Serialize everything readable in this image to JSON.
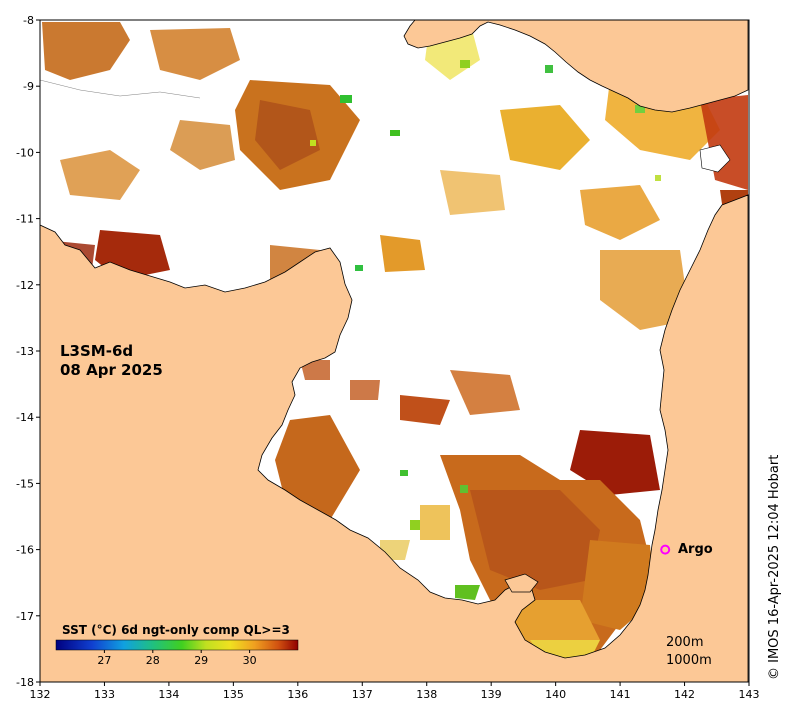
{
  "map": {
    "product": "L3SM-6d",
    "date": "08 Apr 2025",
    "argo_label": "Argo",
    "colorbar_title": "SST (°C) 6d ngt-only comp QL>=3",
    "colorbar_ticks": [
      "27",
      "28",
      "29",
      "30"
    ],
    "depth_labels": [
      "200m",
      "1000m"
    ],
    "credit": "© IMOS 16-Apr-2025 12:04 Hobart",
    "x_ticks": [
      "132",
      "133",
      "134",
      "135",
      "136",
      "137",
      "138",
      "139",
      "140",
      "141",
      "142",
      "143"
    ],
    "y_ticks": [
      "-8",
      "-9",
      "-10",
      "-11",
      "-12",
      "-13",
      "-14",
      "-15",
      "-16",
      "-17",
      "-18"
    ],
    "colors": {
      "land": "#fcc896",
      "coast": "#000000",
      "sst_warm": "#d9822b",
      "sst_hot": "#a01c06",
      "sst_mid": "#f0b030",
      "sst_cool": "#88d020",
      "argo": "#ff00ff"
    },
    "chart_data": {
      "type": "heatmap",
      "lon_range": [
        132,
        143
      ],
      "lat_range": [
        -18,
        -8
      ],
      "colorbar_range": [
        26,
        31
      ],
      "argo_float": {
        "lon": 141.7,
        "lat": -16.0
      }
    }
  }
}
